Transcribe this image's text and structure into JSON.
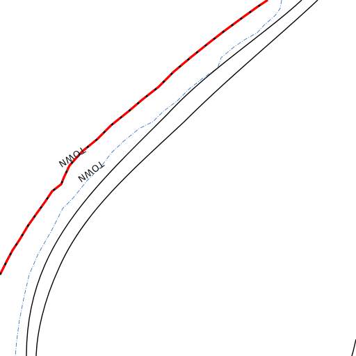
{
  "map": {
    "labels": {
      "town_label_upper": "TOWN",
      "town_label_lower": "TOWN"
    },
    "colors": {
      "background": "#ffffff",
      "boundary_red": "#ff0000",
      "boundary_black": "#000000",
      "road_outline": "#000000",
      "waterway": "#3a78c8"
    },
    "features": [
      "town-boundary-line",
      "road-outline-outer",
      "road-outline-inner",
      "road-lower-right-edge",
      "waterway-line"
    ]
  }
}
